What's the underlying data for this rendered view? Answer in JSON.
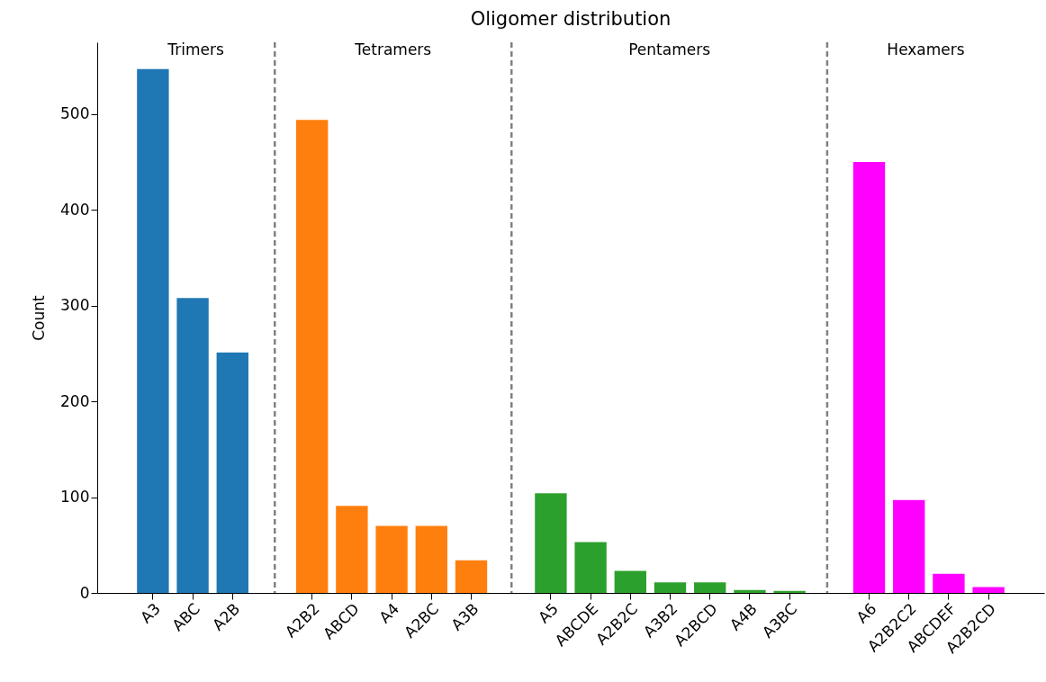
{
  "chart_data": {
    "type": "bar",
    "title": "Oligomer distribution",
    "ylabel": "Count",
    "categories": [
      "A3",
      "ABC",
      "A2B",
      null,
      "A2B2",
      "ABCD",
      "A4",
      "A2BC",
      "A3B",
      null,
      "A5",
      "ABCDE",
      "A2B2C",
      "A3B2",
      "A2BCD",
      "A4B",
      "A3BC",
      null,
      "A6",
      "A2B2C2",
      "ABCDEF",
      "A2B2CD"
    ],
    "values": [
      547,
      308,
      251,
      null,
      494,
      91,
      70,
      70,
      34,
      null,
      104,
      53,
      23,
      11,
      11,
      3,
      2,
      null,
      450,
      97,
      20,
      6
    ],
    "colors": [
      "#1f77b4",
      "#1f77b4",
      "#1f77b4",
      null,
      "#ff7f0e",
      "#ff7f0e",
      "#ff7f0e",
      "#ff7f0e",
      "#ff7f0e",
      null,
      "#2ca02c",
      "#2ca02c",
      "#2ca02c",
      "#2ca02c",
      "#2ca02c",
      "#2ca02c",
      "#2ca02c",
      null,
      "#ff00ff",
      "#ff00ff",
      "#ff00ff",
      "#ff00ff"
    ],
    "ylim": [
      0,
      575
    ],
    "yticks": [
      0,
      100,
      200,
      300,
      400,
      500
    ],
    "grid": "x",
    "annotations": [
      "Trimers",
      "Tetramers",
      "Pentamers",
      "Hexamers"
    ]
  }
}
